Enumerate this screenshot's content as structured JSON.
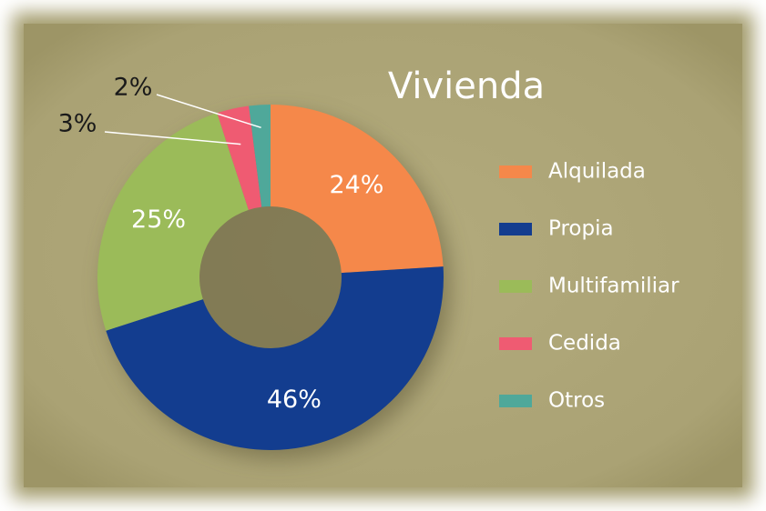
{
  "chart_data": {
    "type": "donut",
    "title": "Vivienda",
    "categories": [
      "Alquilada",
      "Propia",
      "Multifamiliar",
      "Cedida",
      "Otros"
    ],
    "values": [
      24,
      46,
      25,
      3,
      2
    ],
    "value_labels": [
      "24%",
      "46%",
      "25%",
      "3%",
      "2%"
    ],
    "colors": [
      "#f5884a",
      "#133d8f",
      "#9bbb59",
      "#ef5b72",
      "#4fa89a"
    ],
    "legend": "right"
  }
}
